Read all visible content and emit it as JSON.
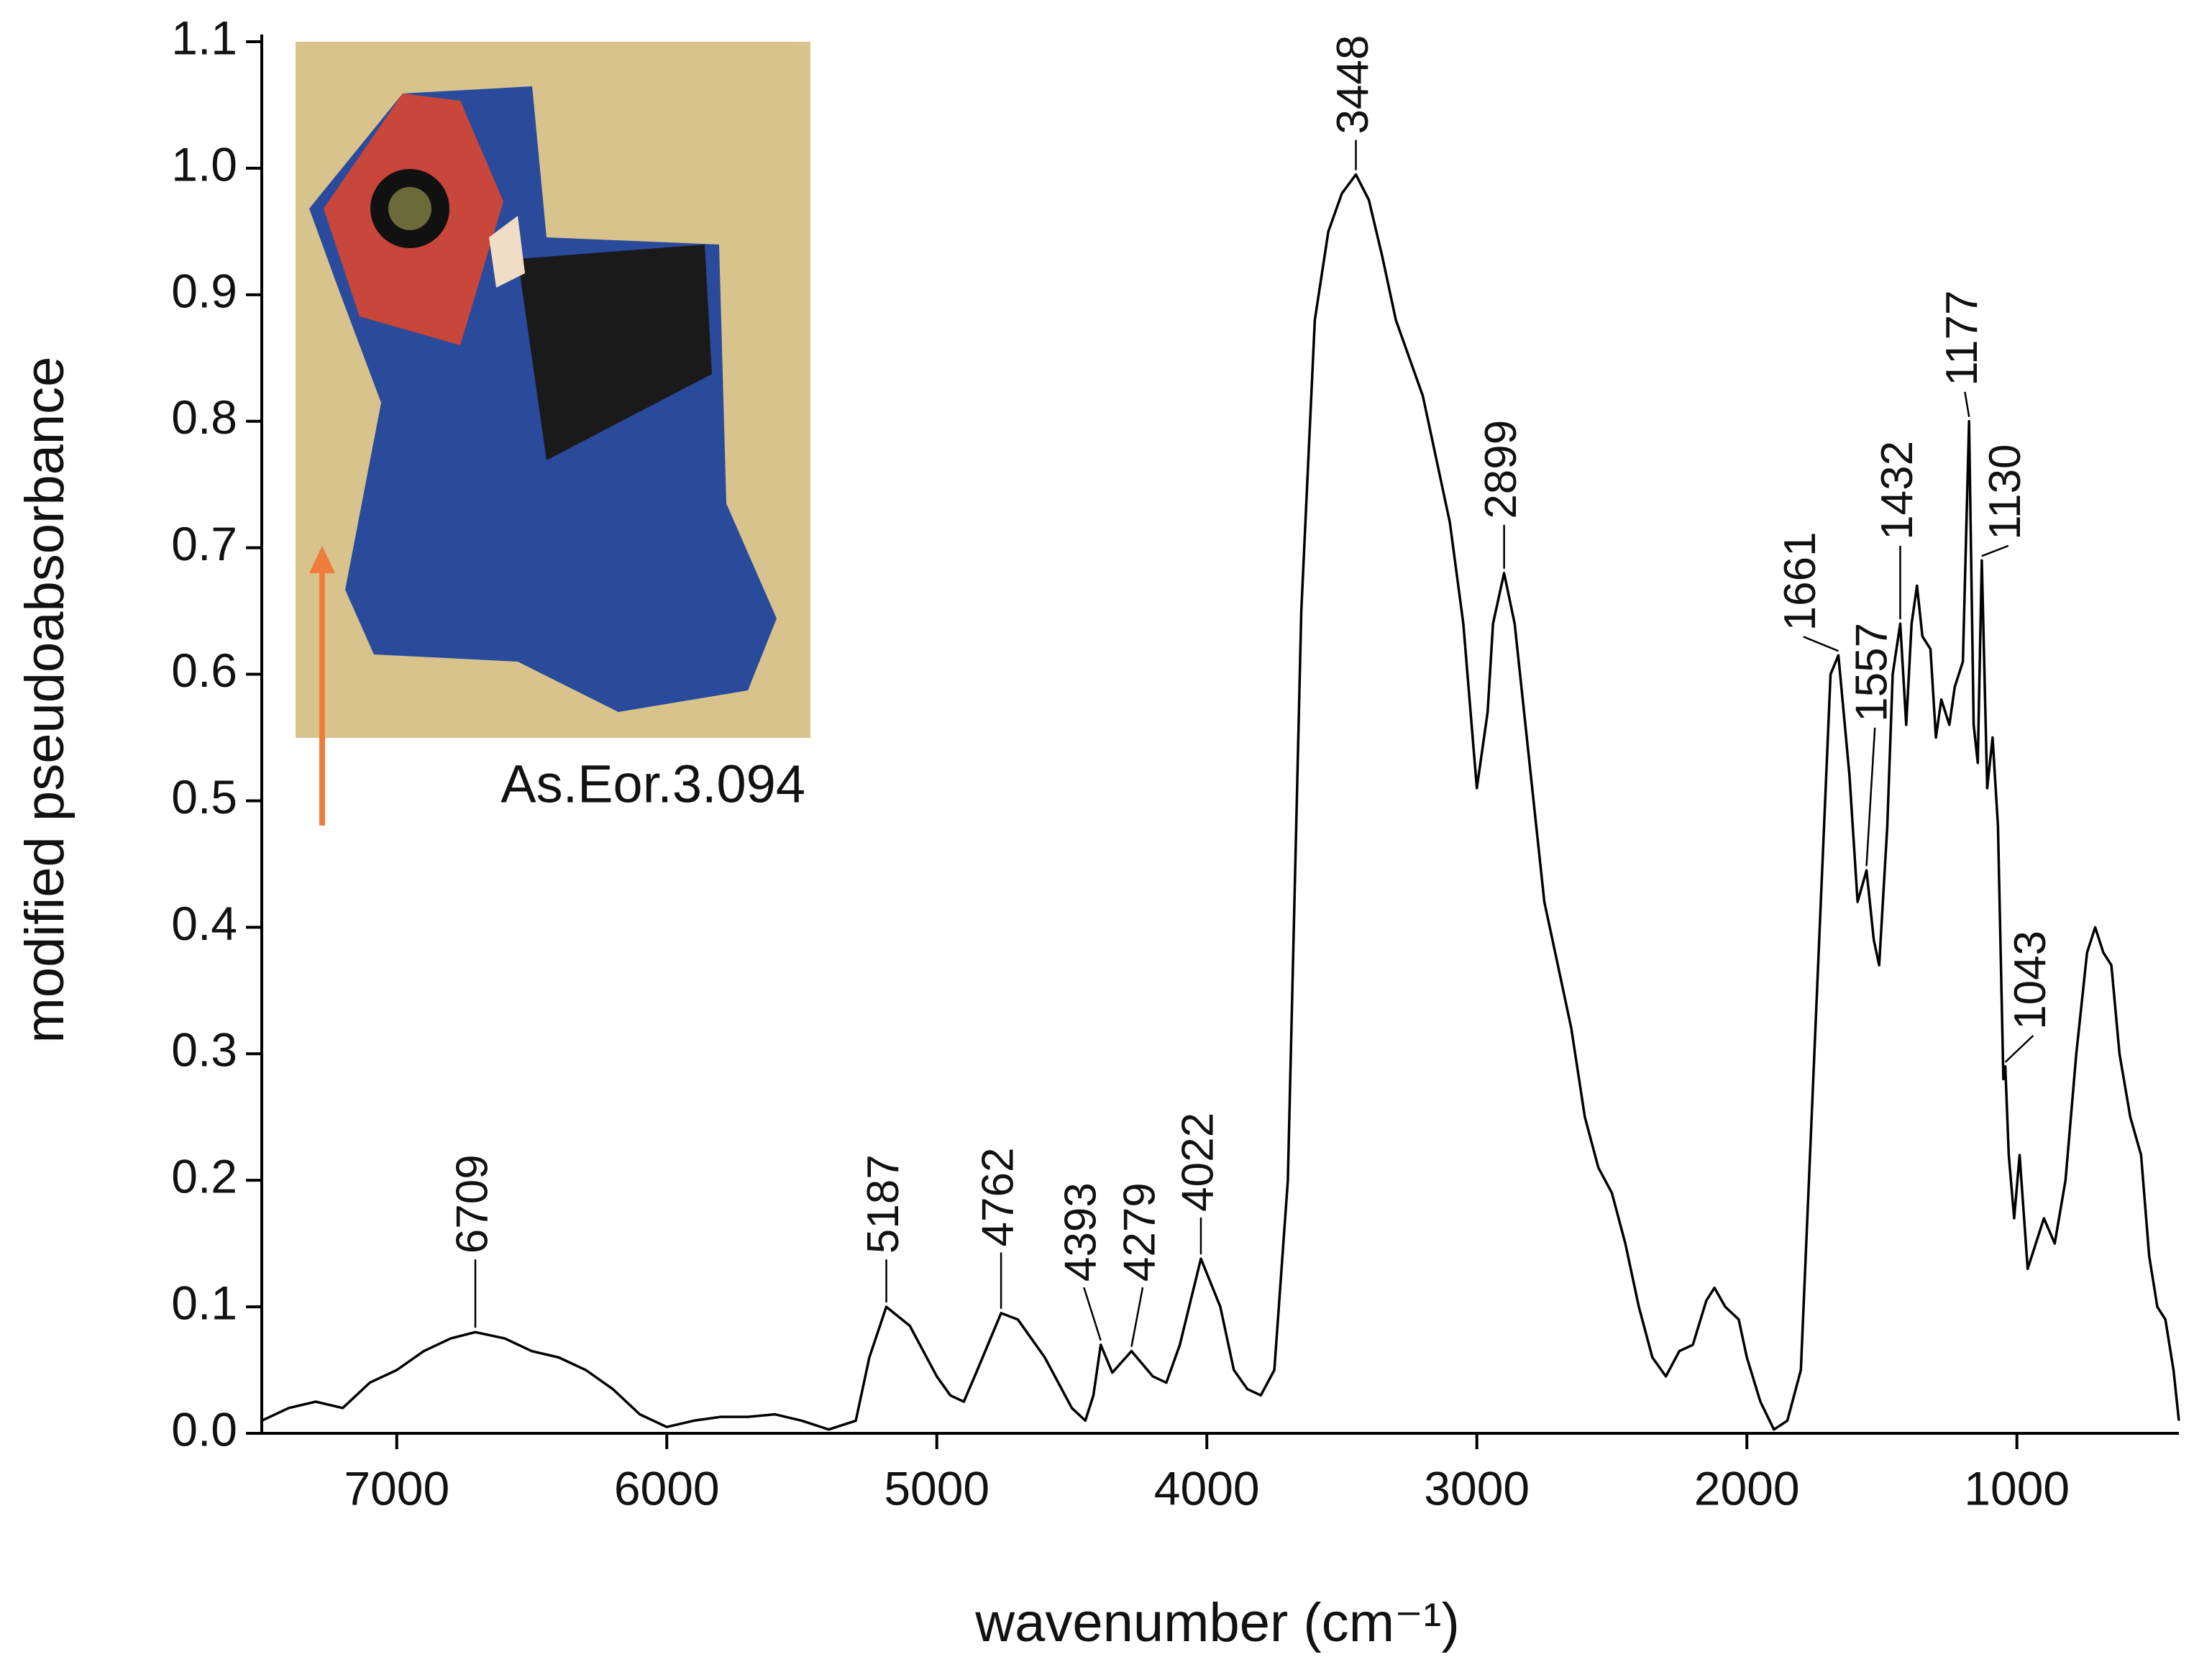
{
  "chart_data": {
    "type": "line",
    "x_label": "wavenumber (cm⁻¹)",
    "y_label": "modified pseudoabsorbance",
    "inset_caption": "As.Eor.3.094",
    "color": "#000000",
    "xlim": [
      7500,
      400
    ],
    "ylim": [
      0,
      1.1
    ],
    "xticks": [
      7000,
      6000,
      5000,
      4000,
      3000,
      2000,
      1000
    ],
    "yticks": [
      {
        "value": 0,
        "label": "0.0"
      },
      0.1,
      0.2,
      0.3,
      0.4,
      0.5,
      0.6,
      0.7,
      0.8,
      0.9,
      {
        "value": 1,
        "label": "1.0"
      },
      1.1
    ],
    "x": [
      7500,
      7400,
      7300,
      7200,
      7100,
      7000,
      6900,
      6800,
      6709,
      6600,
      6500,
      6400,
      6300,
      6200,
      6100,
      6000,
      5900,
      5800,
      5700,
      5600,
      5500,
      5400,
      5300,
      5250,
      5187,
      5100,
      5000,
      4950,
      4900,
      4850,
      4762,
      4700,
      4600,
      4500,
      4450,
      4420,
      4393,
      4350,
      4300,
      4279,
      4200,
      4150,
      4100,
      4022,
      3950,
      3900,
      3850,
      3800,
      3750,
      3700,
      3650,
      3600,
      3550,
      3500,
      3448,
      3400,
      3350,
      3300,
      3200,
      3100,
      3050,
      3000,
      2960,
      2940,
      2899,
      2860,
      2800,
      2750,
      2700,
      2650,
      2600,
      2550,
      2500,
      2450,
      2400,
      2350,
      2300,
      2250,
      2200,
      2150,
      2120,
      2080,
      2030,
      2000,
      1950,
      1900,
      1850,
      1800,
      1760,
      1720,
      1690,
      1661,
      1620,
      1590,
      1557,
      1530,
      1510,
      1480,
      1460,
      1432,
      1410,
      1390,
      1370,
      1350,
      1320,
      1300,
      1280,
      1250,
      1230,
      1200,
      1177,
      1160,
      1145,
      1130,
      1110,
      1090,
      1070,
      1050,
      1043,
      1030,
      1010,
      990,
      960,
      930,
      900,
      860,
      820,
      780,
      740,
      710,
      680,
      650,
      620,
      580,
      540,
      510,
      480,
      450,
      420,
      400
    ],
    "values": [
      0.01,
      0.02,
      0.025,
      0.02,
      0.04,
      0.05,
      0.065,
      0.075,
      0.08,
      0.075,
      0.065,
      0.06,
      0.05,
      0.035,
      0.015,
      0.005,
      0.01,
      0.013,
      0.013,
      0.015,
      0.01,
      0.003,
      0.01,
      0.06,
      0.1,
      0.085,
      0.045,
      0.03,
      0.025,
      0.05,
      0.095,
      0.09,
      0.06,
      0.02,
      0.01,
      0.03,
      0.07,
      0.048,
      0.06,
      0.065,
      0.045,
      0.04,
      0.07,
      0.138,
      0.1,
      0.05,
      0.035,
      0.03,
      0.05,
      0.2,
      0.65,
      0.88,
      0.95,
      0.98,
      0.995,
      0.975,
      0.93,
      0.88,
      0.82,
      0.72,
      0.64,
      0.51,
      0.57,
      0.64,
      0.68,
      0.64,
      0.52,
      0.42,
      0.37,
      0.32,
      0.25,
      0.21,
      0.19,
      0.15,
      0.1,
      0.06,
      0.045,
      0.065,
      0.07,
      0.105,
      0.115,
      0.1,
      0.09,
      0.06,
      0.025,
      0.003,
      0.01,
      0.05,
      0.25,
      0.45,
      0.6,
      0.615,
      0.52,
      0.42,
      0.445,
      0.39,
      0.37,
      0.48,
      0.6,
      0.64,
      0.56,
      0.64,
      0.67,
      0.63,
      0.62,
      0.55,
      0.58,
      0.56,
      0.59,
      0.61,
      0.8,
      0.56,
      0.53,
      0.69,
      0.51,
      0.55,
      0.48,
      0.28,
      0.29,
      0.22,
      0.17,
      0.22,
      0.13,
      0.15,
      0.17,
      0.15,
      0.2,
      0.3,
      0.38,
      0.4,
      0.38,
      0.37,
      0.3,
      0.25,
      0.22,
      0.14,
      0.1,
      0.09,
      0.05,
      0.01
    ],
    "peak_labels": [
      6709,
      5187,
      4762,
      4393,
      4279,
      4022,
      3448,
      2899,
      1661,
      1557,
      1432,
      1177,
      1130,
      1043
    ]
  }
}
